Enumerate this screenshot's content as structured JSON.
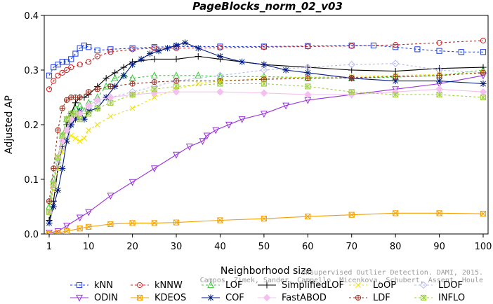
{
  "chart_data": {
    "type": "line",
    "title": "PageBlocks_norm_02_v03",
    "xlabel": "Neighborhood size",
    "ylabel": "Adjusted AP",
    "xlim": [
      1,
      100
    ],
    "ylim": [
      0,
      0.4
    ],
    "x_ticks": [
      1,
      10,
      20,
      30,
      40,
      50,
      60,
      70,
      80,
      90,
      100
    ],
    "y_ticks": [
      0.0,
      0.1,
      0.2,
      0.3,
      0.4
    ],
    "grid": false,
    "legend_position": "bottom",
    "watermark": [
      "Unsupervised Outlier Detection. DAMI, 2015.",
      "Campos, Zimek, Sander, Campello, Micenkova, Schubert, Assent, Houle"
    ],
    "series": [
      {
        "name": "kNN",
        "color": "#1f3fe0",
        "marker": "square",
        "dash": "3,3",
        "points": [
          [
            1,
            0.29
          ],
          [
            2,
            0.305
          ],
          [
            3,
            0.31
          ],
          [
            4,
            0.315
          ],
          [
            5,
            0.315
          ],
          [
            6,
            0.32
          ],
          [
            7,
            0.33
          ],
          [
            8,
            0.34
          ],
          [
            9,
            0.345
          ],
          [
            10,
            0.342
          ],
          [
            12,
            0.336
          ],
          [
            15,
            0.338
          ],
          [
            20,
            0.34
          ],
          [
            25,
            0.342
          ],
          [
            30,
            0.343
          ],
          [
            40,
            0.343
          ],
          [
            50,
            0.343
          ],
          [
            60,
            0.344
          ],
          [
            70,
            0.345
          ],
          [
            75,
            0.345
          ],
          [
            80,
            0.342
          ],
          [
            85,
            0.338
          ],
          [
            90,
            0.335
          ],
          [
            95,
            0.333
          ],
          [
            100,
            0.333
          ]
        ]
      },
      {
        "name": "kNNW",
        "color": "#d42020",
        "marker": "circle",
        "dash": "3,3",
        "points": [
          [
            1,
            0.265
          ],
          [
            2,
            0.28
          ],
          [
            3,
            0.29
          ],
          [
            4,
            0.295
          ],
          [
            5,
            0.3
          ],
          [
            6,
            0.305
          ],
          [
            8,
            0.31
          ],
          [
            10,
            0.315
          ],
          [
            12,
            0.325
          ],
          [
            15,
            0.333
          ],
          [
            20,
            0.338
          ],
          [
            25,
            0.34
          ],
          [
            30,
            0.34
          ],
          [
            40,
            0.341
          ],
          [
            50,
            0.342
          ],
          [
            60,
            0.343
          ],
          [
            70,
            0.344
          ],
          [
            80,
            0.346
          ],
          [
            90,
            0.35
          ],
          [
            100,
            0.354
          ]
        ]
      },
      {
        "name": "LOF",
        "color": "#33cc33",
        "marker": "triangle-up",
        "dash": "3,3",
        "points": [
          [
            1,
            0.05
          ],
          [
            2,
            0.1
          ],
          [
            3,
            0.14
          ],
          [
            4,
            0.18
          ],
          [
            5,
            0.21
          ],
          [
            6,
            0.22
          ],
          [
            7,
            0.23
          ],
          [
            8,
            0.235
          ],
          [
            9,
            0.225
          ],
          [
            10,
            0.24
          ],
          [
            12,
            0.25
          ],
          [
            14,
            0.27
          ],
          [
            16,
            0.285
          ],
          [
            18,
            0.29
          ],
          [
            20,
            0.285
          ],
          [
            25,
            0.29
          ],
          [
            30,
            0.29
          ],
          [
            35,
            0.29
          ],
          [
            40,
            0.288
          ],
          [
            50,
            0.288
          ],
          [
            60,
            0.286
          ],
          [
            70,
            0.285
          ],
          [
            80,
            0.287
          ],
          [
            90,
            0.29
          ],
          [
            100,
            0.3
          ]
        ]
      },
      {
        "name": "SimplifiedLOF",
        "color": "#000000",
        "marker": "plus",
        "dash": "",
        "points": [
          [
            1,
            0.025
          ],
          [
            2,
            0.06
          ],
          [
            3,
            0.12
          ],
          [
            4,
            0.16
          ],
          [
            5,
            0.2
          ],
          [
            6,
            0.22
          ],
          [
            7,
            0.24
          ],
          [
            8,
            0.25
          ],
          [
            9,
            0.25
          ],
          [
            10,
            0.255
          ],
          [
            12,
            0.27
          ],
          [
            14,
            0.285
          ],
          [
            16,
            0.295
          ],
          [
            18,
            0.305
          ],
          [
            20,
            0.315
          ],
          [
            25,
            0.32
          ],
          [
            30,
            0.32
          ],
          [
            35,
            0.325
          ],
          [
            40,
            0.32
          ],
          [
            50,
            0.31
          ],
          [
            60,
            0.305
          ],
          [
            70,
            0.3
          ],
          [
            80,
            0.298
          ],
          [
            90,
            0.303
          ],
          [
            100,
            0.305
          ]
        ]
      },
      {
        "name": "LoOP",
        "color": "#f0e000",
        "marker": "x",
        "dash": "3,3",
        "points": [
          [
            1,
            0.04
          ],
          [
            2,
            0.08
          ],
          [
            3,
            0.12
          ],
          [
            4,
            0.15
          ],
          [
            5,
            0.17
          ],
          [
            6,
            0.18
          ],
          [
            7,
            0.175
          ],
          [
            8,
            0.17
          ],
          [
            9,
            0.175
          ],
          [
            10,
            0.19
          ],
          [
            12,
            0.2
          ],
          [
            15,
            0.215
          ],
          [
            20,
            0.23
          ],
          [
            25,
            0.25
          ],
          [
            30,
            0.265
          ],
          [
            35,
            0.275
          ],
          [
            40,
            0.28
          ],
          [
            50,
            0.285
          ],
          [
            60,
            0.287
          ],
          [
            70,
            0.288
          ],
          [
            80,
            0.29
          ],
          [
            90,
            0.292
          ],
          [
            100,
            0.295
          ]
        ]
      },
      {
        "name": "LDOF",
        "color": "#b8b8f0",
        "marker": "diamond",
        "dash": "3,3",
        "points": [
          [
            1,
            0.04
          ],
          [
            2,
            0.09
          ],
          [
            3,
            0.13
          ],
          [
            4,
            0.16
          ],
          [
            5,
            0.18
          ],
          [
            6,
            0.2
          ],
          [
            8,
            0.215
          ],
          [
            10,
            0.23
          ],
          [
            12,
            0.24
          ],
          [
            15,
            0.25
          ],
          [
            20,
            0.26
          ],
          [
            25,
            0.27
          ],
          [
            30,
            0.28
          ],
          [
            40,
            0.29
          ],
          [
            50,
            0.3
          ],
          [
            60,
            0.305
          ],
          [
            70,
            0.31
          ],
          [
            80,
            0.312
          ],
          [
            90,
            0.3
          ],
          [
            100,
            0.295
          ]
        ]
      },
      {
        "name": "ODIN",
        "color": "#9933dd",
        "marker": "triangle-down",
        "dash": "",
        "points": [
          [
            1,
            0.002
          ],
          [
            3,
            0.005
          ],
          [
            5,
            0.015
          ],
          [
            8,
            0.03
          ],
          [
            10,
            0.04
          ],
          [
            15,
            0.07
          ],
          [
            20,
            0.095
          ],
          [
            25,
            0.12
          ],
          [
            30,
            0.145
          ],
          [
            33,
            0.16
          ],
          [
            36,
            0.17
          ],
          [
            37,
            0.18
          ],
          [
            39,
            0.19
          ],
          [
            42,
            0.2
          ],
          [
            45,
            0.21
          ],
          [
            50,
            0.22
          ],
          [
            55,
            0.235
          ],
          [
            60,
            0.245
          ],
          [
            70,
            0.255
          ],
          [
            80,
            0.265
          ],
          [
            90,
            0.275
          ],
          [
            100,
            0.29
          ]
        ]
      },
      {
        "name": "KDEOS",
        "color": "#f5a000",
        "marker": "square-x",
        "dash": "",
        "points": [
          [
            1,
            0.0
          ],
          [
            3,
            0.002
          ],
          [
            5,
            0.005
          ],
          [
            8,
            0.01
          ],
          [
            10,
            0.013
          ],
          [
            15,
            0.018
          ],
          [
            20,
            0.02
          ],
          [
            25,
            0.02
          ],
          [
            30,
            0.021
          ],
          [
            40,
            0.025
          ],
          [
            50,
            0.028
          ],
          [
            60,
            0.032
          ],
          [
            70,
            0.035
          ],
          [
            80,
            0.038
          ],
          [
            90,
            0.038
          ],
          [
            100,
            0.037
          ]
        ]
      },
      {
        "name": "COF",
        "color": "#001a80",
        "marker": "star",
        "dash": "",
        "points": [
          [
            1,
            0.02
          ],
          [
            2,
            0.05
          ],
          [
            3,
            0.08
          ],
          [
            4,
            0.12
          ],
          [
            5,
            0.17
          ],
          [
            6,
            0.2
          ],
          [
            7,
            0.21
          ],
          [
            8,
            0.225
          ],
          [
            9,
            0.21
          ],
          [
            10,
            0.225
          ],
          [
            12,
            0.23
          ],
          [
            14,
            0.25
          ],
          [
            16,
            0.27
          ],
          [
            18,
            0.29
          ],
          [
            20,
            0.31
          ],
          [
            22,
            0.32
          ],
          [
            24,
            0.33
          ],
          [
            26,
            0.335
          ],
          [
            28,
            0.34
          ],
          [
            30,
            0.345
          ],
          [
            32,
            0.35
          ],
          [
            35,
            0.34
          ],
          [
            40,
            0.325
          ],
          [
            45,
            0.315
          ],
          [
            50,
            0.31
          ],
          [
            55,
            0.3
          ],
          [
            60,
            0.295
          ],
          [
            70,
            0.285
          ],
          [
            80,
            0.28
          ],
          [
            90,
            0.28
          ],
          [
            100,
            0.275
          ]
        ]
      },
      {
        "name": "FastABOD",
        "color": "#f5c0f0",
        "marker": "diamond-filled",
        "dash": "",
        "points": [
          [
            1,
            0.04
          ],
          [
            2,
            0.09
          ],
          [
            3,
            0.14
          ],
          [
            4,
            0.17
          ],
          [
            5,
            0.19
          ],
          [
            6,
            0.21
          ],
          [
            8,
            0.22
          ],
          [
            10,
            0.235
          ],
          [
            12,
            0.245
          ],
          [
            15,
            0.25
          ],
          [
            20,
            0.255
          ],
          [
            25,
            0.258
          ],
          [
            30,
            0.26
          ],
          [
            40,
            0.26
          ],
          [
            50,
            0.258
          ],
          [
            60,
            0.255
          ],
          [
            70,
            0.255
          ],
          [
            80,
            0.26
          ],
          [
            90,
            0.265
          ],
          [
            100,
            0.26
          ]
        ]
      },
      {
        "name": "LDF",
        "color": "#a03020",
        "marker": "circle-plus",
        "dash": "3,3",
        "points": [
          [
            1,
            0.06
          ],
          [
            2,
            0.12
          ],
          [
            3,
            0.19
          ],
          [
            4,
            0.23
          ],
          [
            5,
            0.245
          ],
          [
            6,
            0.25
          ],
          [
            7,
            0.25
          ],
          [
            8,
            0.25
          ],
          [
            10,
            0.26
          ],
          [
            12,
            0.265
          ],
          [
            15,
            0.27
          ],
          [
            20,
            0.275
          ],
          [
            25,
            0.278
          ],
          [
            30,
            0.28
          ],
          [
            40,
            0.28
          ],
          [
            50,
            0.283
          ],
          [
            60,
            0.285
          ],
          [
            70,
            0.286
          ],
          [
            80,
            0.288
          ],
          [
            90,
            0.29
          ],
          [
            100,
            0.295
          ]
        ]
      },
      {
        "name": "INFLO",
        "color": "#a0d040",
        "marker": "square-star",
        "dash": "3,3",
        "points": [
          [
            1,
            0.04
          ],
          [
            2,
            0.09
          ],
          [
            3,
            0.14
          ],
          [
            4,
            0.18
          ],
          [
            5,
            0.21
          ],
          [
            6,
            0.22
          ],
          [
            7,
            0.22
          ],
          [
            8,
            0.21
          ],
          [
            10,
            0.22
          ],
          [
            12,
            0.23
          ],
          [
            15,
            0.24
          ],
          [
            20,
            0.255
          ],
          [
            25,
            0.265
          ],
          [
            30,
            0.27
          ],
          [
            40,
            0.275
          ],
          [
            50,
            0.275
          ],
          [
            60,
            0.27
          ],
          [
            70,
            0.26
          ],
          [
            80,
            0.255
          ],
          [
            90,
            0.255
          ],
          [
            100,
            0.25
          ]
        ]
      }
    ]
  }
}
